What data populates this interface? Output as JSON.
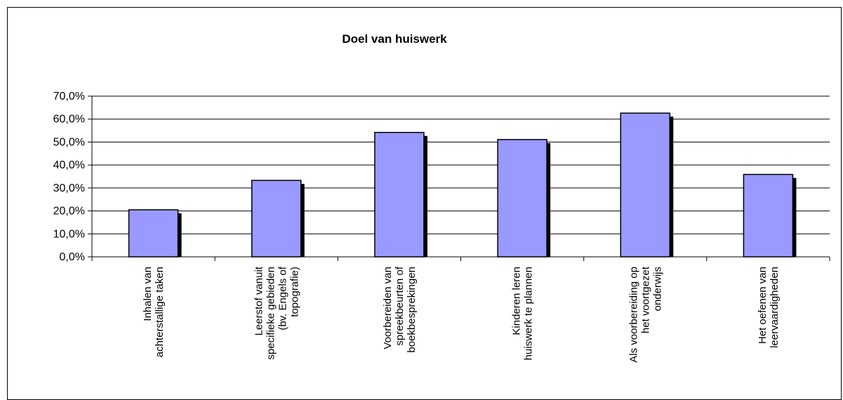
{
  "chart_data": {
    "type": "bar",
    "title": "Doel van huiswerk",
    "xlabel": "",
    "ylabel": "",
    "categories": [
      [
        "Inhalen van",
        "achterstallige taken"
      ],
      [
        "Leerstof vanuit",
        "specifieke gebieden",
        "(bv. Engels of",
        "topografie)"
      ],
      [
        "Voorbereiden van",
        "spreekbeurten of",
        "boekbesprekingen"
      ],
      [
        "Kinderen leren",
        "huiswerk te plannen"
      ],
      [
        "Als voorbereiding op",
        "het voortgezet",
        "onderwijs"
      ],
      [
        "Het oefenen van",
        "leervaardigheden"
      ]
    ],
    "values": [
      20.5,
      33.3,
      54.2,
      51.1,
      62.6,
      35.9
    ],
    "ylim": [
      0,
      70
    ],
    "yticks": [
      "0,0%",
      "10,0%",
      "20,0%",
      "30,0%",
      "40,0%",
      "50,0%",
      "60,0%",
      "70,0%"
    ],
    "grid": true,
    "legend": "none",
    "colors": {
      "bar": "#9999ff",
      "bar_border": "#000000",
      "shadow": "#000000",
      "grid": "#000000"
    }
  }
}
